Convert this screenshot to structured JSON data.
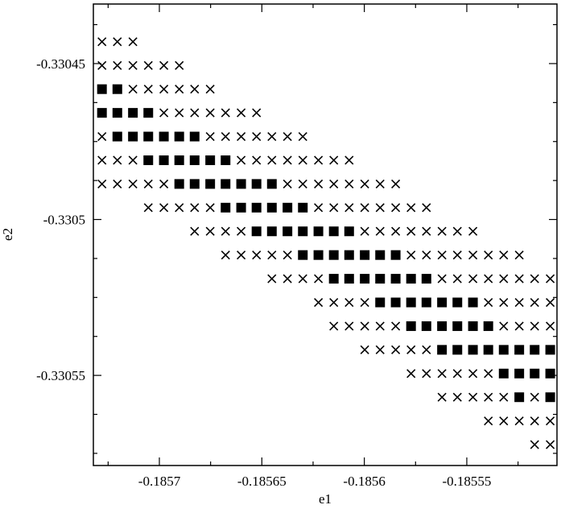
{
  "chart_data": {
    "type": "scatter",
    "x_label": "e1",
    "y_label": "e2",
    "xlim": [
      -0.1857322,
      -0.185506
    ],
    "ylim": [
      -0.3305789,
      -0.3304309
    ],
    "xticks": [
      -0.1857,
      -0.18565,
      -0.1856,
      -0.18555
    ],
    "yticks": [
      -0.33045,
      -0.3305,
      -0.33055
    ],
    "xminorticks": [
      -0.185725,
      -0.185675,
      -0.185625,
      -0.185575,
      -0.185525
    ],
    "yminorticks": [
      -0.3304375,
      -0.3304625,
      -0.330475,
      -0.3304875,
      -0.3305125,
      -0.330525,
      -0.3305375,
      -0.3305625,
      -0.330575
    ],
    "grid": false,
    "series": [
      {
        "marker": "cross",
        "color": "#000000",
        "x": [
          -0.185728,
          -0.1857205,
          -0.1857129,
          -0.185728,
          -0.1857205,
          -0.1857129,
          -0.1857054,
          -0.1856978,
          -0.1856903,
          -0.1857129,
          -0.1857054,
          -0.1856978,
          -0.1856903,
          -0.1856828,
          -0.1856752,
          -0.1856978,
          -0.1856903,
          -0.1856828,
          -0.1856752,
          -0.1856677,
          -0.1856601,
          -0.1856526,
          -0.185728,
          -0.1856752,
          -0.1856677,
          -0.1856601,
          -0.1856526,
          -0.1856451,
          -0.1856375,
          -0.18563,
          -0.185728,
          -0.1857205,
          -0.1857129,
          -0.1856601,
          -0.1856526,
          -0.1856451,
          -0.1856375,
          -0.18563,
          -0.1856224,
          -0.1856149,
          -0.1856074,
          -0.185728,
          -0.1857205,
          -0.1857129,
          -0.1857054,
          -0.1856978,
          -0.1856375,
          -0.18563,
          -0.1856224,
          -0.1856149,
          -0.1856074,
          -0.1855998,
          -0.1855923,
          -0.1855847,
          -0.1857054,
          -0.1856978,
          -0.1856903,
          -0.1856828,
          -0.1856752,
          -0.1856224,
          -0.1856149,
          -0.1856074,
          -0.1855998,
          -0.1855923,
          -0.1855847,
          -0.1855772,
          -0.1855697,
          -0.1856828,
          -0.1856752,
          -0.1856677,
          -0.1856601,
          -0.1855998,
          -0.1855923,
          -0.1855847,
          -0.1855772,
          -0.1855697,
          -0.1855621,
          -0.1855546,
          -0.185547,
          -0.1856677,
          -0.1856601,
          -0.1856526,
          -0.1856451,
          -0.1856375,
          -0.1855772,
          -0.1855697,
          -0.1855621,
          -0.1855546,
          -0.185547,
          -0.1855395,
          -0.185532,
          -0.1855244,
          -0.1856451,
          -0.1856375,
          -0.18563,
          -0.1856224,
          -0.1855621,
          -0.1855546,
          -0.185547,
          -0.1855395,
          -0.185532,
          -0.1855244,
          -0.1855169,
          -0.1855093,
          -0.1856224,
          -0.1856149,
          -0.1856074,
          -0.1855998,
          -0.1855395,
          -0.185532,
          -0.1855244,
          -0.1855169,
          -0.1855093,
          -0.1856149,
          -0.1856074,
          -0.1855998,
          -0.1855923,
          -0.1855847,
          -0.185532,
          -0.1855244,
          -0.1855169,
          -0.1855093,
          -0.1855998,
          -0.1855923,
          -0.1855847,
          -0.1855772,
          -0.1855697,
          -0.1855772,
          -0.1855697,
          -0.1855621,
          -0.1855546,
          -0.185547,
          -0.1855395,
          -0.1855621,
          -0.1855546,
          -0.185547,
          -0.1855395,
          -0.185532,
          -0.1855169,
          -0.1855395,
          -0.185532,
          -0.1855244,
          -0.1855169,
          -0.1855093,
          -0.1855169,
          -0.1855093
        ],
        "values": [
          -0.330443,
          -0.330443,
          -0.330443,
          -0.3304506,
          -0.3304506,
          -0.3304506,
          -0.3304506,
          -0.3304506,
          -0.3304506,
          -0.3304582,
          -0.3304582,
          -0.3304582,
          -0.3304582,
          -0.3304582,
          -0.3304582,
          -0.3304658,
          -0.3304658,
          -0.3304658,
          -0.3304658,
          -0.3304658,
          -0.3304658,
          -0.3304658,
          -0.3304734,
          -0.3304734,
          -0.3304734,
          -0.3304734,
          -0.3304734,
          -0.3304734,
          -0.3304734,
          -0.3304734,
          -0.330481,
          -0.330481,
          -0.330481,
          -0.330481,
          -0.330481,
          -0.330481,
          -0.330481,
          -0.330481,
          -0.330481,
          -0.330481,
          -0.330481,
          -0.3304886,
          -0.3304886,
          -0.3304886,
          -0.3304886,
          -0.3304886,
          -0.3304886,
          -0.3304886,
          -0.3304886,
          -0.3304886,
          -0.3304886,
          -0.3304886,
          -0.3304886,
          -0.3304886,
          -0.3304962,
          -0.3304962,
          -0.3304962,
          -0.3304962,
          -0.3304962,
          -0.3304962,
          -0.3304962,
          -0.3304962,
          -0.3304962,
          -0.3304962,
          -0.3304962,
          -0.3304962,
          -0.3304962,
          -0.3305038,
          -0.3305038,
          -0.3305038,
          -0.3305038,
          -0.3305038,
          -0.3305038,
          -0.3305038,
          -0.3305038,
          -0.3305038,
          -0.3305038,
          -0.3305038,
          -0.3305038,
          -0.3305114,
          -0.3305114,
          -0.3305114,
          -0.3305114,
          -0.3305114,
          -0.3305114,
          -0.3305114,
          -0.3305114,
          -0.3305114,
          -0.3305114,
          -0.3305114,
          -0.3305114,
          -0.3305114,
          -0.330519,
          -0.330519,
          -0.330519,
          -0.330519,
          -0.330519,
          -0.330519,
          -0.330519,
          -0.330519,
          -0.330519,
          -0.330519,
          -0.330519,
          -0.330519,
          -0.3305266,
          -0.3305266,
          -0.3305266,
          -0.3305266,
          -0.3305266,
          -0.3305266,
          -0.3305266,
          -0.3305266,
          -0.3305266,
          -0.3305342,
          -0.3305342,
          -0.3305342,
          -0.3305342,
          -0.3305342,
          -0.3305342,
          -0.3305342,
          -0.3305342,
          -0.3305342,
          -0.3305418,
          -0.3305418,
          -0.3305418,
          -0.3305418,
          -0.3305418,
          -0.3305494,
          -0.3305494,
          -0.3305494,
          -0.3305494,
          -0.3305494,
          -0.3305494,
          -0.330557,
          -0.330557,
          -0.330557,
          -0.330557,
          -0.330557,
          -0.330557,
          -0.3305646,
          -0.3305646,
          -0.3305646,
          -0.3305646,
          -0.3305646,
          -0.3305722,
          -0.3305722
        ]
      },
      {
        "marker": "square",
        "color": "#000000",
        "x": [
          -0.185728,
          -0.1857205,
          -0.185728,
          -0.1857205,
          -0.1857129,
          -0.1857054,
          -0.1857205,
          -0.1857129,
          -0.1857054,
          -0.1856978,
          -0.1856903,
          -0.1856828,
          -0.1857054,
          -0.1856978,
          -0.1856903,
          -0.1856828,
          -0.1856752,
          -0.1856677,
          -0.1856903,
          -0.1856828,
          -0.1856752,
          -0.1856677,
          -0.1856601,
          -0.1856526,
          -0.1856451,
          -0.1856677,
          -0.1856601,
          -0.1856526,
          -0.1856451,
          -0.1856375,
          -0.18563,
          -0.1856526,
          -0.1856451,
          -0.1856375,
          -0.18563,
          -0.1856224,
          -0.1856149,
          -0.1856074,
          -0.18563,
          -0.1856224,
          -0.1856149,
          -0.1856074,
          -0.1855998,
          -0.1855923,
          -0.1855847,
          -0.1856149,
          -0.1856074,
          -0.1855998,
          -0.1855923,
          -0.1855847,
          -0.1855772,
          -0.1855697,
          -0.1855923,
          -0.1855847,
          -0.1855772,
          -0.1855697,
          -0.1855621,
          -0.1855546,
          -0.185547,
          -0.1855772,
          -0.1855697,
          -0.1855621,
          -0.1855546,
          -0.185547,
          -0.1855395,
          -0.1855621,
          -0.1855546,
          -0.185547,
          -0.1855395,
          -0.185532,
          -0.1855244,
          -0.1855169,
          -0.1855093,
          -0.185532,
          -0.1855244,
          -0.1855169,
          -0.1855093,
          -0.1855244,
          -0.1855093
        ],
        "values": [
          -0.3304582,
          -0.3304582,
          -0.3304658,
          -0.3304658,
          -0.3304658,
          -0.3304658,
          -0.3304734,
          -0.3304734,
          -0.3304734,
          -0.3304734,
          -0.3304734,
          -0.3304734,
          -0.330481,
          -0.330481,
          -0.330481,
          -0.330481,
          -0.330481,
          -0.330481,
          -0.3304886,
          -0.3304886,
          -0.3304886,
          -0.3304886,
          -0.3304886,
          -0.3304886,
          -0.3304886,
          -0.3304962,
          -0.3304962,
          -0.3304962,
          -0.3304962,
          -0.3304962,
          -0.3304962,
          -0.3305038,
          -0.3305038,
          -0.3305038,
          -0.3305038,
          -0.3305038,
          -0.3305038,
          -0.3305038,
          -0.3305114,
          -0.3305114,
          -0.3305114,
          -0.3305114,
          -0.3305114,
          -0.3305114,
          -0.3305114,
          -0.330519,
          -0.330519,
          -0.330519,
          -0.330519,
          -0.330519,
          -0.330519,
          -0.330519,
          -0.3305266,
          -0.3305266,
          -0.3305266,
          -0.3305266,
          -0.3305266,
          -0.3305266,
          -0.3305266,
          -0.3305342,
          -0.3305342,
          -0.3305342,
          -0.3305342,
          -0.3305342,
          -0.3305342,
          -0.3305418,
          -0.3305418,
          -0.3305418,
          -0.3305418,
          -0.3305418,
          -0.3305418,
          -0.3305418,
          -0.3305418,
          -0.3305494,
          -0.3305494,
          -0.3305494,
          -0.3305494,
          -0.330557,
          -0.330557
        ]
      }
    ]
  }
}
